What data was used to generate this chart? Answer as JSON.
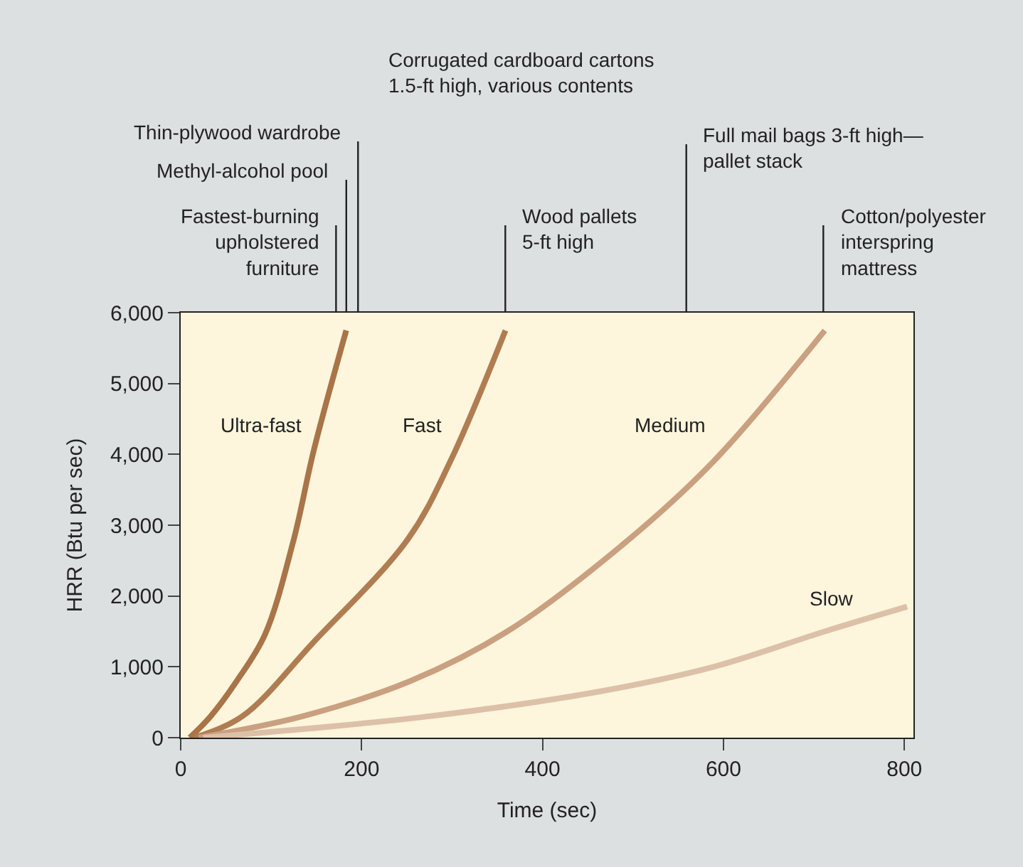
{
  "chart_data": {
    "type": "line",
    "xlabel": "Time (sec)",
    "ylabel": "HRR (Btu per sec)",
    "xlim": [
      0,
      810
    ],
    "ylim": [
      0,
      6000
    ],
    "xticks": [
      0,
      200,
      400,
      600,
      800
    ],
    "yticks": [
      0,
      {
        "value": 1000,
        "label": "1,000"
      },
      {
        "value": 2000,
        "label": "2,000"
      },
      {
        "value": 3000,
        "label": "3,000"
      },
      {
        "value": 4000,
        "label": "4,000"
      },
      {
        "value": 5000,
        "label": "5,000"
      },
      {
        "value": 6000,
        "label": "6,000"
      }
    ],
    "grid": false,
    "legend": false,
    "marker": "none",
    "line_style": "solid",
    "series": [
      {
        "name": "Ultra-fast",
        "color": "#a87448",
        "x": [
          10,
          33,
          62,
          93,
          125,
          147,
          183
        ],
        "values": [
          0,
          300,
          800,
          1450,
          2800,
          4050,
          5750
        ]
      },
      {
        "name": "Fast",
        "color": "#b07d52",
        "x": [
          15,
          68,
          147,
          251,
          298,
          359
        ],
        "values": [
          0,
          300,
          1350,
          2800,
          3900,
          5750
        ]
      },
      {
        "name": "Medium",
        "color": "#c9a080",
        "x": [
          20,
          134,
          254,
          361,
          491,
          589,
          712
        ],
        "values": [
          0,
          300,
          800,
          1500,
          2750,
          3900,
          5750
        ]
      },
      {
        "name": "Slow",
        "color": "#dcc0a8",
        "x": [
          25,
          273,
          462,
          589,
          712,
          803
        ],
        "values": [
          0,
          300,
          650,
          1000,
          1500,
          1850
        ]
      }
    ],
    "annotations": [
      "Fastest-burning\nupholstered\nfurniture",
      "Methyl-alcohol pool",
      "Thin-plywood wardrobe",
      "Corrugated cardboard cartons\n1.5-ft high, various contents",
      "Wood pallets\n5-ft high",
      "Full mail bags 3-ft high—\npallet stack",
      "Cotton/polyester\ninterspring\nmattress"
    ]
  }
}
